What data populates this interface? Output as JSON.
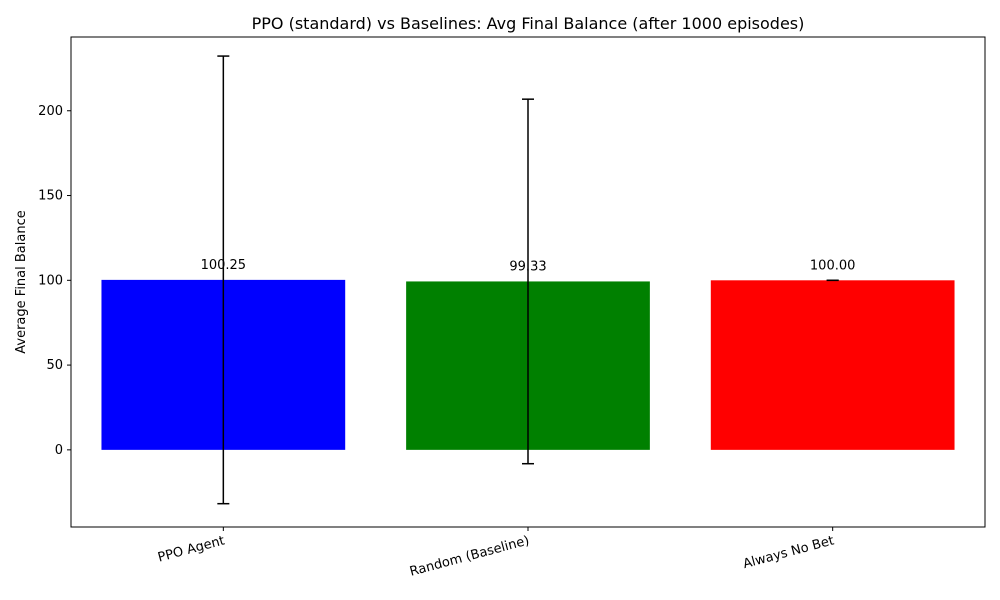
{
  "chart_data": {
    "type": "bar",
    "title": "PPO (standard) vs Baselines: Avg Final Balance (after 1000 episodes)",
    "xlabel": "",
    "ylabel": "Average Final Balance",
    "ylim": [
      -45.5,
      243.5
    ],
    "yticks": [
      0,
      50,
      100,
      150,
      200
    ],
    "grid": false,
    "categories": [
      "PPO Agent",
      "Random (Baseline)",
      "Always No Bet"
    ],
    "values": [
      100.25,
      99.33,
      100.0
    ],
    "value_labels": [
      "100.25",
      "99.33",
      "100.00"
    ],
    "error": [
      132.0,
      107.5,
      0.0
    ],
    "colors": [
      "#0000ff",
      "#008000",
      "#ff0000"
    ]
  }
}
